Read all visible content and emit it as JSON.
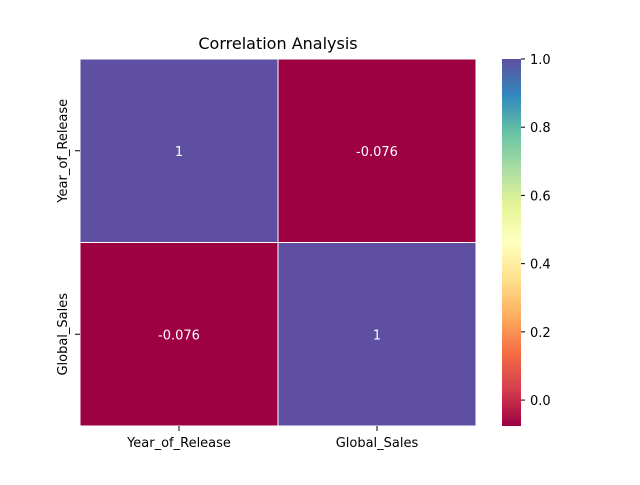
{
  "chart_data": {
    "type": "heatmap",
    "title": "Correlation Analysis",
    "x_categories": [
      "Year_of_Release",
      "Global_Sales"
    ],
    "y_categories": [
      "Year_of_Release",
      "Global_Sales"
    ],
    "values": [
      [
        1,
        -0.076
      ],
      [
        -0.076,
        1
      ]
    ],
    "cell_labels": [
      [
        "1",
        "-0.076"
      ],
      [
        "-0.076",
        "1"
      ]
    ],
    "colormap": "Spectral",
    "colorbar": {
      "vmin": -0.076,
      "vmax": 1.0,
      "ticks": [
        0.0,
        0.2,
        0.4,
        0.6,
        0.8,
        1.0
      ],
      "tick_labels": [
        "0.0",
        "0.2",
        "0.4",
        "0.6",
        "0.8",
        "1.0"
      ]
    },
    "colors": {
      "high": "#5e4fa2",
      "low": "#9e0142",
      "annotation_text": "#ffffff",
      "cell_border": "#ffffff"
    },
    "grid": false,
    "legend": "colorbar-right"
  }
}
